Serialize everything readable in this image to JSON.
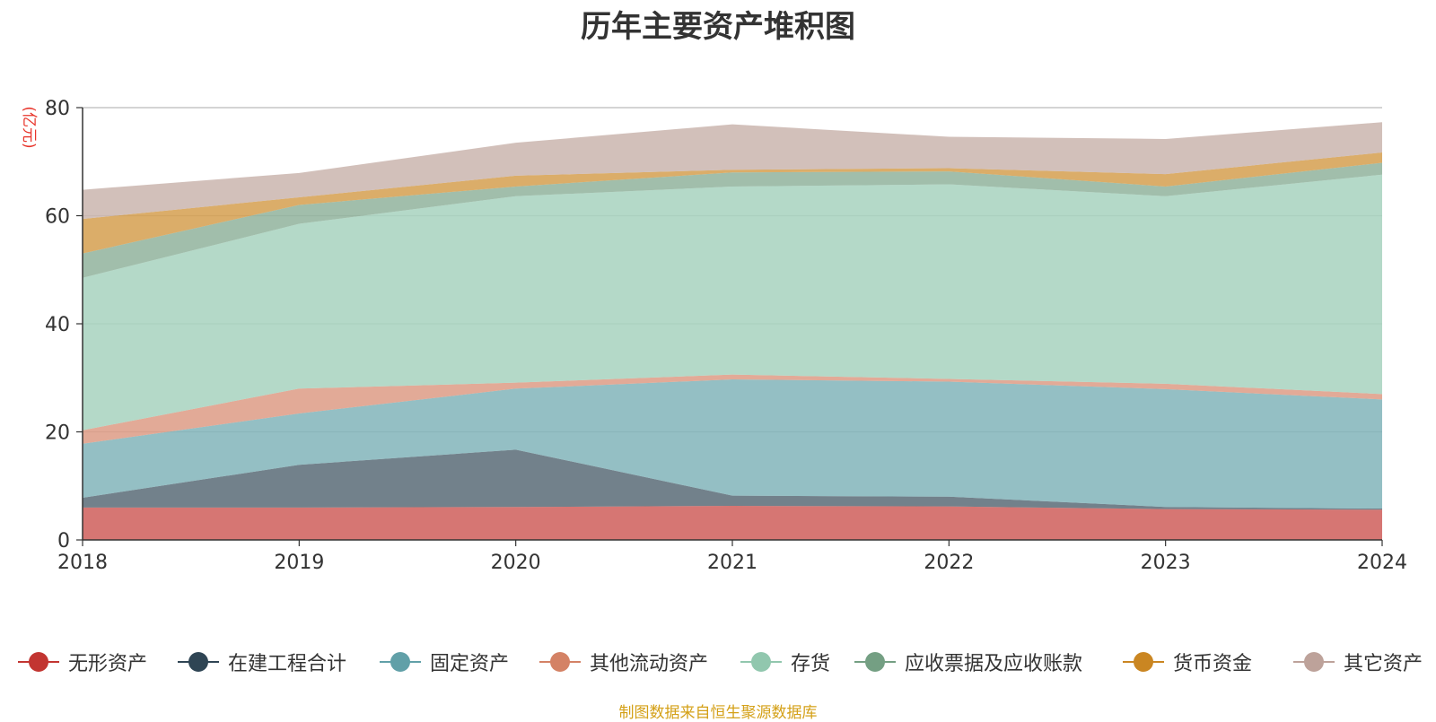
{
  "chart_data": {
    "type": "area",
    "stacked": true,
    "title": "历年主要资产堆积图",
    "ylabel": "(亿元)",
    "xlabel": "",
    "categories": [
      "2018",
      "2019",
      "2020",
      "2021",
      "2022",
      "2023",
      "2024"
    ],
    "yticks": [
      0,
      20,
      40,
      60,
      80
    ],
    "ylim": [
      0,
      80
    ],
    "grid": true,
    "legend_position": "bottom",
    "series": [
      {
        "name": "无形资产",
        "color": "#c23531",
        "values": [
          6.0,
          6.0,
          6.1,
          6.3,
          6.2,
          5.7,
          5.6
        ]
      },
      {
        "name": "在建工程合计",
        "color": "#2f4554",
        "values": [
          1.8,
          7.9,
          10.6,
          1.9,
          1.8,
          0.4,
          0.2
        ]
      },
      {
        "name": "固定资产",
        "color": "#61a0a8",
        "values": [
          10.0,
          9.5,
          11.3,
          21.5,
          21.3,
          21.8,
          20.2
        ]
      },
      {
        "name": "其他流动资产",
        "color": "#d48265",
        "values": [
          2.5,
          4.6,
          1.1,
          0.9,
          0.5,
          1.0,
          1.0
        ]
      },
      {
        "name": "存货",
        "color": "#91c7ae",
        "values": [
          28.2,
          30.5,
          34.5,
          34.8,
          36.0,
          34.7,
          40.6
        ]
      },
      {
        "name": "应收票据及应收账款",
        "color": "#749f83",
        "values": [
          4.5,
          3.5,
          1.8,
          2.6,
          2.4,
          1.8,
          2.2
        ]
      },
      {
        "name": "货币资金",
        "color": "#ca8622",
        "values": [
          6.4,
          1.4,
          2.0,
          0.5,
          0.6,
          2.3,
          1.9
        ]
      },
      {
        "name": "其它资产",
        "color": "#bda29a",
        "values": [
          5.4,
          4.5,
          6.1,
          8.4,
          5.8,
          6.5,
          5.6
        ]
      }
    ]
  },
  "footer": {
    "source": "制图数据来自恒生聚源数据库"
  }
}
